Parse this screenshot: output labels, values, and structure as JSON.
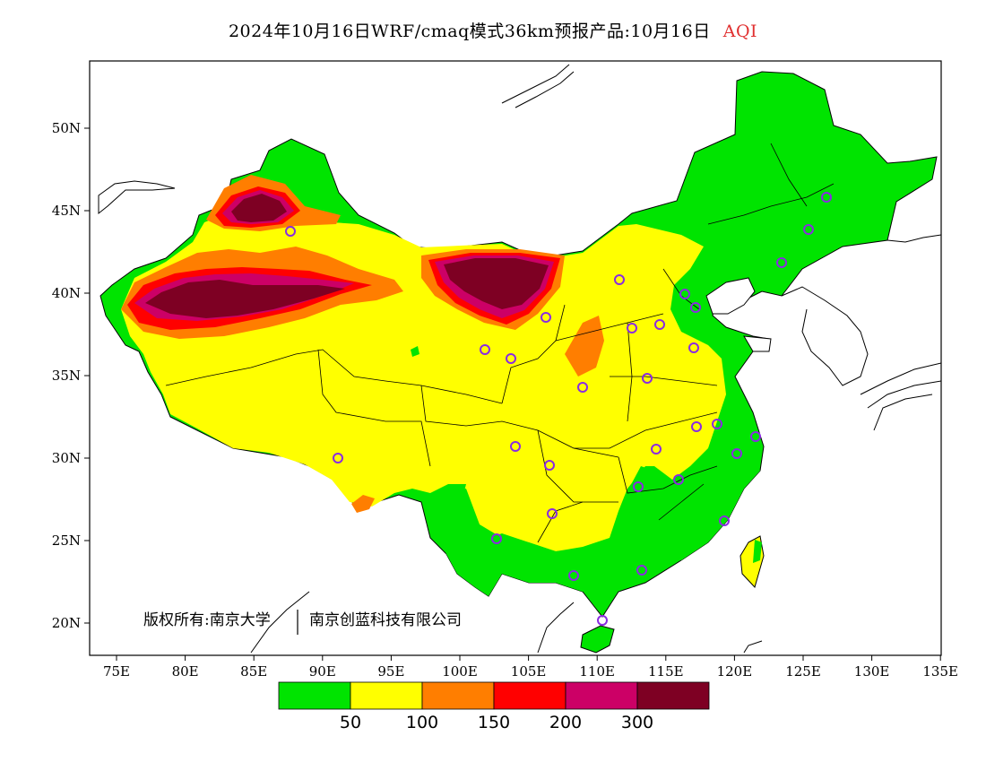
{
  "title": {
    "main": "2024年10月16日WRF/cmaq模式36km预报产品:10月16日",
    "variable": "AQI"
  },
  "map": {
    "lon_ticks": [
      "75E",
      "80E",
      "85E",
      "90E",
      "95E",
      "100E",
      "105E",
      "110E",
      "115E",
      "120E",
      "125E",
      "130E",
      "135E"
    ],
    "lat_ticks": [
      "50N",
      "45N",
      "40N",
      "35N",
      "30N",
      "25N",
      "20N"
    ],
    "copyright": "版权所有:南京大学",
    "company": "南京创蓝科技有限公司",
    "colors": {
      "good": "#00e400",
      "moderate": "#ffff00",
      "sensitive": "#ff7e00",
      "unhealthy": "#ff0000",
      "very_unhealthy": "#cc0066",
      "hazardous": "#7e0023",
      "station": "#8a2be2"
    }
  },
  "colorbar": {
    "colors": [
      "#00e400",
      "#ffff00",
      "#ff7e00",
      "#ff0000",
      "#cc0066",
      "#7e0023"
    ],
    "labels": [
      "50",
      "100",
      "150",
      "200",
      "300"
    ]
  }
}
